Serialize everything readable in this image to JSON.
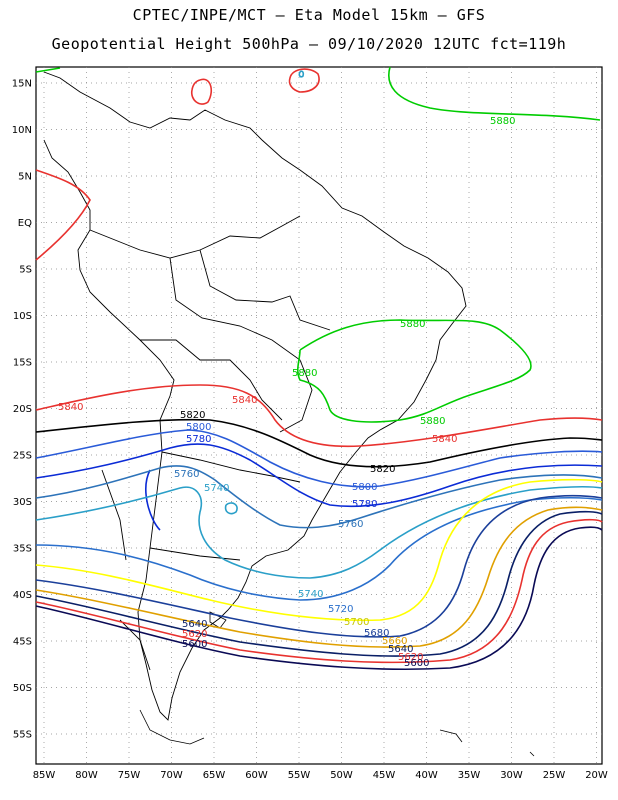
{
  "header": {
    "line1": "CPTEC/INPE/MCT –  Eta Model 15km – GFS",
    "line2": "Geopotential Height 500hPa – 09/10/2020 12UTC fct=119h"
  },
  "map": {
    "lat_labels": [
      "15N",
      "10N",
      "5N",
      "EQ",
      "5S",
      "10S",
      "15S",
      "20S",
      "25S",
      "30S",
      "35S",
      "40S",
      "45S",
      "50S",
      "55S"
    ],
    "lon_labels": [
      "85W",
      "80W",
      "75W",
      "70W",
      "65W",
      "60W",
      "55W",
      "50W",
      "45W",
      "40W",
      "35W",
      "30W",
      "25W",
      "20W"
    ],
    "contours": [
      {
        "value": "5880",
        "color": "#00cc00"
      },
      {
        "value": "5840",
        "color": "#e8322f"
      },
      {
        "value": "5820",
        "color": "#000000"
      },
      {
        "value": "5800",
        "color": "#2a5bd8"
      },
      {
        "value": "5780",
        "color": "#0b2bd6"
      },
      {
        "value": "5760",
        "color": "#2d73b9"
      },
      {
        "value": "5740",
        "color": "#2a9fc8"
      },
      {
        "value": "5720",
        "color": "#2a6fcc"
      },
      {
        "value": "5700",
        "color": "#ffff00"
      },
      {
        "value": "5680",
        "color": "#1b3f9a"
      },
      {
        "value": "5660",
        "color": "#e0a000"
      },
      {
        "value": "5640",
        "color": "#0a1f66"
      },
      {
        "value": "5620",
        "color": "#e8322f"
      },
      {
        "value": "5600",
        "color": "#0a0a55"
      }
    ]
  }
}
